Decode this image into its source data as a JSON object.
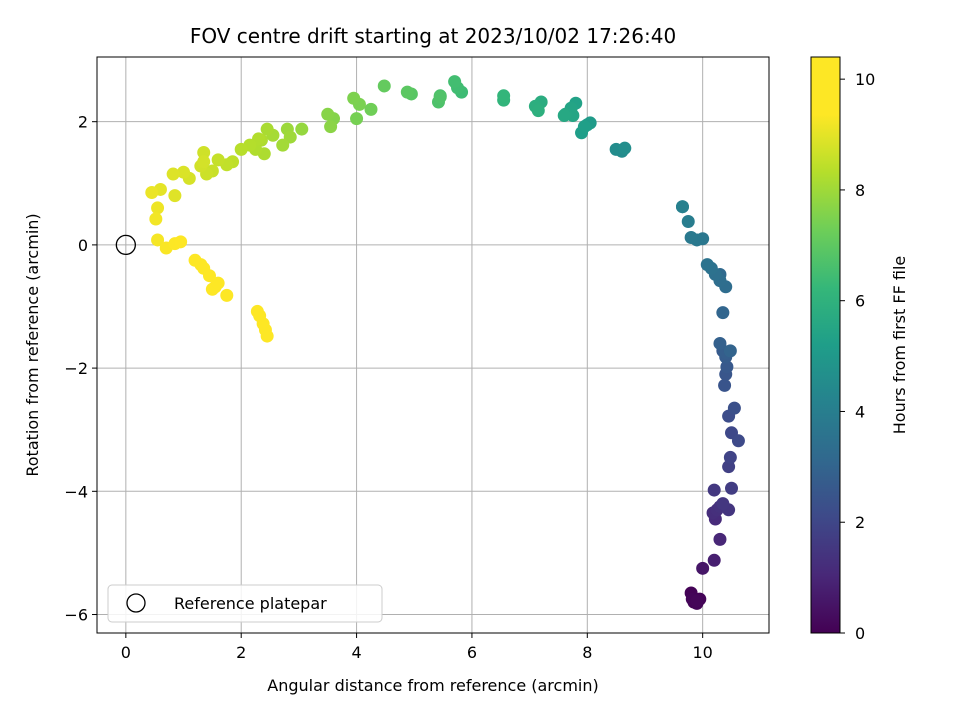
{
  "chart_data": {
    "type": "scatter",
    "title": "FOV centre drift starting at 2023/10/02 17:26:40",
    "xlabel": "Angular distance from reference (arcmin)",
    "ylabel": "Rotation from reference (arcmin)",
    "xlim": [
      -0.5,
      11.15
    ],
    "ylim": [
      -6.3,
      3.05
    ],
    "xticks": [
      0,
      2,
      4,
      6,
      8,
      10
    ],
    "yticks": [
      -6,
      -4,
      -2,
      0,
      2
    ],
    "xtick_labels": [
      "0",
      "2",
      "4",
      "6",
      "8",
      "10"
    ],
    "ytick_labels": [
      "−6",
      "−4",
      "−2",
      "0",
      "2"
    ],
    "grid": true,
    "colorbar": {
      "label": "Hours from first FF file",
      "min": 0,
      "max": 10.4,
      "ticks": [
        0,
        2,
        4,
        6,
        8,
        10
      ],
      "tick_labels": [
        "0",
        "2",
        "4",
        "6",
        "8",
        "10"
      ],
      "colormap": "viridis"
    },
    "legend": {
      "placement": "lower-left",
      "label": "Reference platepar"
    },
    "reference_point": {
      "x": 0.0,
      "y": 0.0
    },
    "series": [
      {
        "x": [
          9.8,
          9.85,
          9.95,
          9.9,
          9.82,
          9.9,
          10.0,
          10.2,
          10.3,
          10.22,
          10.18,
          10.25,
          10.3,
          10.45,
          10.35,
          10.2,
          10.5,
          10.45,
          10.48,
          10.5,
          10.62,
          10.45,
          10.55,
          10.38,
          10.4,
          10.42,
          10.35,
          10.4,
          10.4,
          10.3,
          10.48,
          10.35,
          10.3,
          10.4,
          10.3,
          10.22,
          10.15,
          10.08,
          10.0,
          9.9,
          9.8,
          9.75,
          9.65,
          9.65,
          8.6,
          8.5,
          8.65,
          8.0,
          8.05,
          7.9,
          7.95,
          7.8,
          7.72,
          7.75,
          7.62,
          7.6,
          7.2,
          7.1,
          7.15,
          6.55,
          6.55,
          5.82,
          5.75,
          5.7,
          5.45,
          5.42,
          5.45,
          4.95,
          4.88,
          4.48,
          4.25,
          4.0,
          4.05,
          3.95,
          3.6,
          3.5,
          3.55,
          3.05,
          2.8,
          2.85,
          2.72,
          2.55,
          2.45,
          2.4,
          2.35,
          2.25,
          2.3,
          2.15,
          2.0,
          1.85,
          1.75,
          1.6,
          1.5,
          1.4,
          1.35,
          1.3,
          1.35,
          1.1,
          1.0,
          0.82,
          0.85,
          0.6,
          0.45,
          0.55,
          0.52,
          0.55,
          0.7,
          0.85,
          0.95,
          1.2,
          1.3,
          1.35,
          1.45,
          1.55,
          1.5,
          1.6,
          1.75,
          2.28,
          2.38,
          2.32,
          2.42,
          2.45
        ],
        "y": [
          -5.65,
          -5.8,
          -5.75,
          -5.82,
          -5.75,
          -5.78,
          -5.25,
          -5.12,
          -4.78,
          -4.45,
          -4.35,
          -4.3,
          -4.25,
          -4.3,
          -4.2,
          -3.98,
          -3.95,
          -3.6,
          -3.45,
          -3.05,
          -3.18,
          -2.78,
          -2.65,
          -2.28,
          -2.1,
          -1.98,
          -1.72,
          -1.82,
          -1.75,
          -1.6,
          -1.72,
          -1.1,
          -0.48,
          -0.68,
          -0.58,
          -0.48,
          -0.38,
          -0.32,
          0.1,
          0.08,
          0.12,
          0.38,
          0.62,
          0.62,
          1.52,
          1.55,
          1.57,
          1.95,
          1.98,
          1.82,
          1.92,
          2.3,
          2.22,
          2.1,
          2.12,
          2.1,
          2.32,
          2.25,
          2.18,
          2.35,
          2.42,
          2.48,
          2.55,
          2.65,
          2.42,
          2.32,
          2.4,
          2.45,
          2.48,
          2.58,
          2.2,
          2.05,
          2.28,
          2.38,
          2.05,
          2.12,
          1.92,
          1.88,
          1.88,
          1.75,
          1.62,
          1.78,
          1.88,
          1.48,
          1.7,
          1.55,
          1.72,
          1.62,
          1.55,
          1.35,
          1.3,
          1.38,
          1.2,
          1.15,
          1.5,
          1.28,
          1.35,
          1.08,
          1.18,
          1.15,
          0.8,
          0.9,
          0.85,
          0.6,
          0.42,
          0.08,
          -0.05,
          0.02,
          0.05,
          -0.25,
          -0.32,
          -0.38,
          -0.5,
          -0.68,
          -0.72,
          -0.62,
          -0.82,
          -1.08,
          -1.28,
          -1.15,
          -1.38,
          -1.48
        ],
        "t": [
          0.05,
          0.06,
          0.08,
          0.1,
          0.12,
          0.14,
          0.55,
          0.8,
          1.0,
          1.15,
          1.22,
          1.3,
          1.35,
          1.45,
          1.5,
          1.55,
          1.7,
          1.8,
          1.9,
          2.05,
          2.1,
          2.2,
          2.3,
          2.45,
          2.5,
          2.6,
          2.65,
          2.72,
          2.8,
          2.9,
          3.0,
          3.05,
          3.2,
          3.3,
          3.35,
          3.45,
          3.5,
          3.55,
          3.7,
          3.75,
          3.8,
          3.95,
          4.05,
          4.1,
          4.5,
          4.55,
          4.6,
          5.0,
          5.1,
          5.2,
          5.25,
          5.35,
          5.45,
          5.5,
          5.55,
          5.6,
          5.8,
          5.85,
          5.9,
          6.1,
          6.15,
          6.4,
          6.45,
          6.5,
          6.65,
          6.7,
          6.75,
          6.9,
          6.95,
          7.1,
          7.3,
          7.4,
          7.45,
          7.5,
          7.6,
          7.65,
          7.7,
          7.85,
          7.95,
          8.0,
          8.05,
          8.1,
          8.15,
          8.2,
          8.22,
          8.25,
          8.28,
          8.3,
          8.35,
          8.45,
          8.5,
          8.55,
          8.6,
          8.65,
          8.7,
          8.72,
          8.75,
          8.8,
          8.85,
          8.9,
          8.92,
          9.0,
          9.1,
          9.15,
          9.2,
          9.25,
          9.3,
          9.35,
          9.4,
          9.45,
          9.5,
          9.55,
          9.6,
          9.62,
          9.65,
          9.7,
          9.75,
          9.95,
          10.0,
          10.1,
          10.2,
          10.3
        ]
      }
    ]
  }
}
